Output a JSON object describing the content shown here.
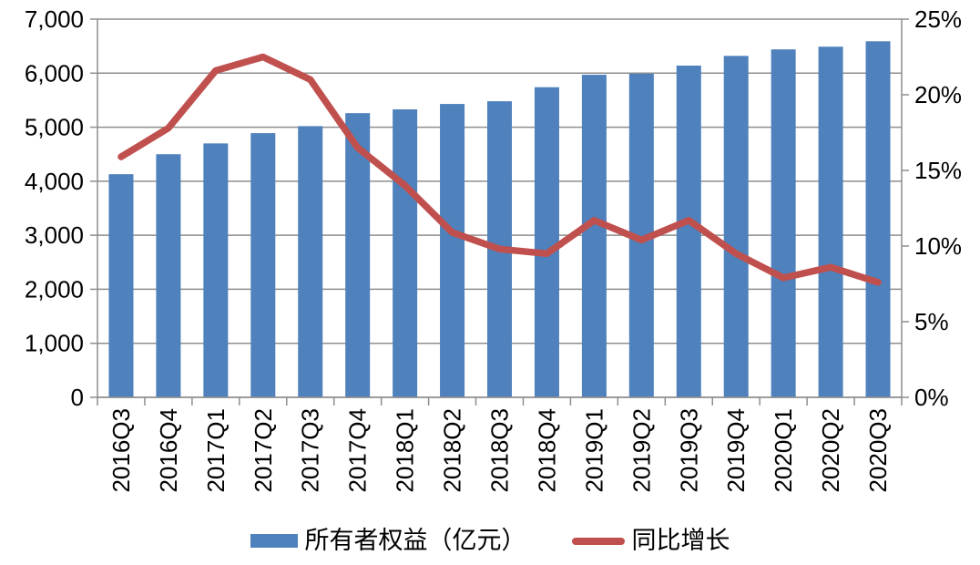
{
  "chart_data": {
    "type": "bar",
    "subtype": "combo-bar-line",
    "title": "",
    "categories": [
      "2016Q3",
      "2016Q4",
      "2017Q1",
      "2017Q2",
      "2017Q3",
      "2017Q4",
      "2018Q1",
      "2018Q2",
      "2018Q3",
      "2018Q4",
      "2019Q1",
      "2019Q2",
      "2019Q3",
      "2019Q4",
      "2020Q1",
      "2020Q2",
      "2020Q3"
    ],
    "series": [
      {
        "name": "所有者权益（亿元）",
        "type": "bar",
        "axis": "left",
        "color": "#4F81BD",
        "values": [
          4130,
          4500,
          4700,
          4890,
          5020,
          5260,
          5330,
          5430,
          5480,
          5740,
          5970,
          5990,
          6140,
          6320,
          6440,
          6490,
          6590
        ]
      },
      {
        "name": "同比增长",
        "type": "line",
        "axis": "right",
        "color": "#C0504D",
        "values": [
          15.9,
          17.8,
          21.6,
          22.5,
          21.0,
          16.5,
          14.0,
          10.9,
          9.8,
          9.5,
          11.7,
          10.4,
          11.7,
          9.5,
          7.9,
          8.6,
          7.6
        ]
      }
    ],
    "left_axis": {
      "min": 0,
      "max": 7000,
      "step": 1000,
      "tick_labels": [
        "0",
        "1,000",
        "2,000",
        "3,000",
        "4,000",
        "5,000",
        "6,000",
        "7,000"
      ]
    },
    "right_axis": {
      "min": 0,
      "max": 25,
      "step": 5,
      "tick_labels": [
        "0%",
        "5%",
        "10%",
        "15%",
        "20%",
        "25%"
      ],
      "unit": "%"
    },
    "grid": true,
    "legend_position": "bottom"
  },
  "colors": {
    "bar": "#4F81BD",
    "line": "#C0504D",
    "grid": "#8E8E8E",
    "axis": "#8E8E8E",
    "text": "#000000",
    "background": "#FFFFFF"
  }
}
